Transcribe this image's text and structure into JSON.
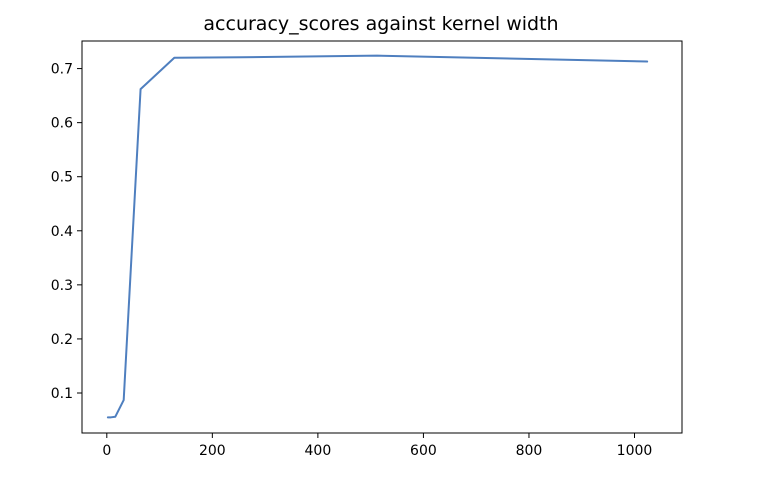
{
  "chart_data": {
    "type": "line",
    "title": "accuracy_scores against kernel width",
    "xlabel": "",
    "ylabel": "",
    "xlim": [
      -47,
      1090
    ],
    "ylim": [
      0.026,
      0.751
    ],
    "x_ticks": [
      0,
      200,
      400,
      600,
      800,
      1000
    ],
    "y_ticks": [
      0.1,
      0.2,
      0.3,
      0.4,
      0.5,
      0.6,
      0.7
    ],
    "x_tick_labels": [
      "0",
      "200",
      "400",
      "600",
      "800",
      "1000"
    ],
    "y_tick_labels": [
      "0.1",
      "0.2",
      "0.3",
      "0.4",
      "0.5",
      "0.6",
      "0.7"
    ],
    "grid": false,
    "legend": false,
    "series": [
      {
        "color": "#4f7fbf",
        "x": [
          2,
          4,
          8,
          16,
          32,
          64,
          128,
          256,
          512,
          1024
        ],
        "y": [
          0.055,
          0.055,
          0.055,
          0.056,
          0.087,
          0.662,
          0.72,
          0.721,
          0.724,
          0.713
        ]
      }
    ]
  }
}
